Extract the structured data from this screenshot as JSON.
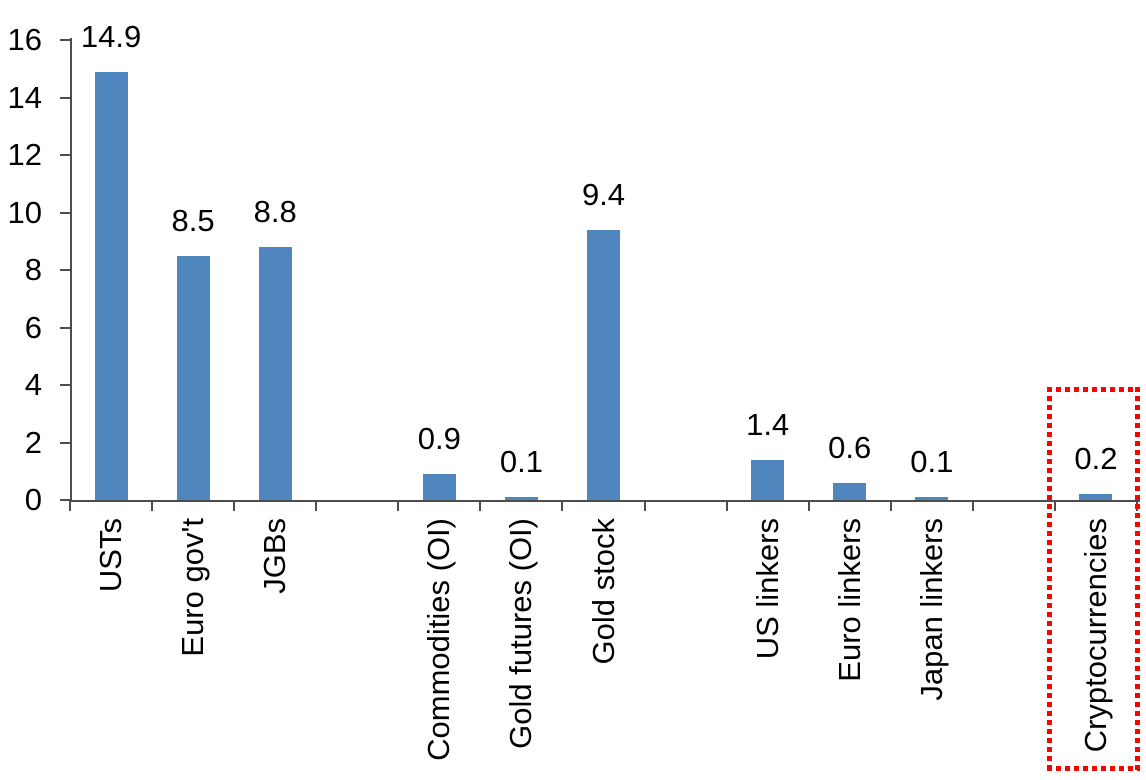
{
  "chart_data": {
    "type": "bar",
    "title": "",
    "xlabel": "",
    "ylabel": "",
    "ylim": [
      0,
      16
    ],
    "yticks": [
      0,
      2,
      4,
      6,
      8,
      10,
      12,
      14,
      16
    ],
    "grid": false,
    "legend": null,
    "bar_color": "#4e86bd",
    "axis_color": "#4d4d4d",
    "text_color": "#000000",
    "highlight_color": "#ff0000",
    "slots": [
      {
        "label": "USTs",
        "value": 14.9,
        "value_label": "14.9"
      },
      {
        "label": "Euro gov't",
        "value": 8.5,
        "value_label": "8.5"
      },
      {
        "label": "JGBs",
        "value": 8.8,
        "value_label": "8.8"
      },
      {
        "label": null,
        "value": null
      },
      {
        "label": "Commodities (OI)",
        "value": 0.9,
        "value_label": "0.9"
      },
      {
        "label": "Gold futures (OI)",
        "value": 0.1,
        "value_label": "0.1"
      },
      {
        "label": "Gold stock",
        "value": 9.4,
        "value_label": "9.4"
      },
      {
        "label": null,
        "value": null
      },
      {
        "label": "US linkers",
        "value": 1.4,
        "value_label": "1.4"
      },
      {
        "label": "Euro linkers",
        "value": 0.6,
        "value_label": "0.6"
      },
      {
        "label": "Japan linkers",
        "value": 0.1,
        "value_label": "0.1"
      },
      {
        "label": null,
        "value": null
      },
      {
        "label": "Cryptocurrencies",
        "value": 0.2,
        "value_label": "0.2",
        "highlighted": true
      }
    ],
    "highlight": {
      "style": "red-dotted-box",
      "category": "Cryptocurrencies"
    }
  }
}
